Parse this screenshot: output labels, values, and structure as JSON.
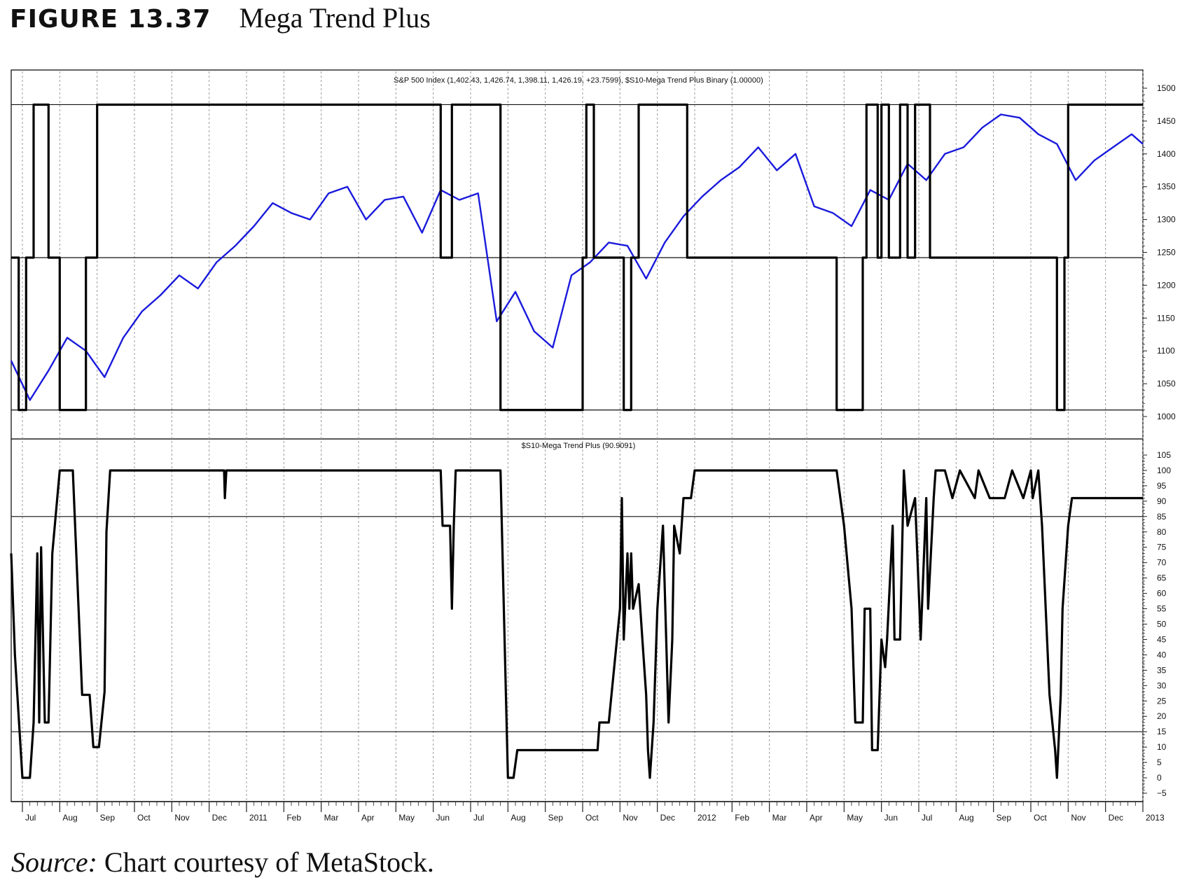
{
  "figure": {
    "number": "FIGURE 13.37",
    "title": "Mega Trend Plus",
    "source_prefix": "Source:",
    "source_text": " Chart courtesy of MetaStock."
  },
  "chart_data": [
    {
      "type": "line",
      "title": "S&P 500 Index (1,402.43, 1,426.74, 1,398.11, 1,426.19, +23.7599), $S10-Mega Trend Plus Binary (1.00000)",
      "ylim": [
        1000,
        1500
      ],
      "yticks": [
        1000,
        1050,
        1100,
        1150,
        1200,
        1250,
        1300,
        1350,
        1400,
        1450,
        1500
      ],
      "hlines": [
        1010,
        1242,
        1475
      ],
      "grid": "vertical dotted at month starts",
      "series": [
        {
          "color": "#1a1adc",
          "x": [
            0.0,
            0.5,
            1.0,
            1.5,
            2.0,
            2.5,
            3.0,
            3.5,
            4.0,
            4.5,
            5.0,
            5.5,
            6.0,
            6.5,
            7.0,
            7.5,
            8.0,
            8.5,
            9.0,
            9.5,
            10.0,
            10.5,
            11.0,
            11.5,
            12.0,
            12.5,
            13.0,
            13.5,
            14.0,
            14.5,
            15.0,
            15.5,
            16.0,
            16.5,
            17.0,
            17.5,
            18.0,
            18.5,
            19.0,
            19.5,
            20.0,
            20.5,
            21.0,
            21.5,
            22.0,
            22.5,
            23.0,
            23.5,
            24.0,
            24.5,
            25.0,
            25.5,
            26.0,
            26.5,
            27.0,
            27.5,
            28.0,
            28.5,
            29.0,
            29.5,
            30.0,
            30.3
          ],
          "y": [
            1085,
            1025,
            1070,
            1120,
            1100,
            1060,
            1120,
            1160,
            1185,
            1215,
            1195,
            1235,
            1260,
            1290,
            1325,
            1310,
            1300,
            1340,
            1350,
            1300,
            1330,
            1335,
            1280,
            1345,
            1330,
            1340,
            1145,
            1190,
            1130,
            1105,
            1215,
            1235,
            1265,
            1260,
            1210,
            1265,
            1305,
            1335,
            1360,
            1380,
            1410,
            1375,
            1400,
            1320,
            1310,
            1290,
            1345,
            1330,
            1385,
            1360,
            1400,
            1410,
            1440,
            1460,
            1455,
            1430,
            1415,
            1360,
            1390,
            1410,
            1430,
            1415
          ]
        },
        {
          "color": "#000000",
          "x": [
            0.0,
            0.2,
            0.2,
            0.4,
            0.4,
            0.6,
            0.6,
            1.0,
            1.0,
            1.3,
            1.3,
            2.0,
            2.0,
            2.3,
            2.3,
            2.6,
            2.6,
            11.5,
            11.5,
            11.8,
            11.8,
            13.1,
            13.1,
            15.3,
            15.3,
            15.4,
            15.4,
            15.6,
            15.6,
            16.4,
            16.4,
            16.6,
            16.6,
            16.8,
            16.8,
            18.1,
            18.1,
            22.1,
            22.1,
            22.8,
            22.8,
            22.9,
            22.9,
            23.2,
            23.2,
            23.3,
            23.3,
            23.5,
            23.5,
            23.8,
            23.8,
            24.0,
            24.0,
            24.2,
            24.2,
            24.5,
            24.5,
            24.6,
            24.6,
            28.0,
            28.0,
            28.2,
            28.2,
            28.3,
            28.3,
            28.5,
            28.5,
            30.3
          ],
          "y": [
            1242,
            1242,
            1010,
            1010,
            1242,
            1242,
            1475,
            1475,
            1242,
            1242,
            1010,
            1010,
            1242,
            1242,
            1475,
            1475,
            1475,
            1475,
            1242,
            1242,
            1475,
            1475,
            1010,
            1010,
            1242,
            1242,
            1475,
            1475,
            1242,
            1242,
            1010,
            1010,
            1242,
            1242,
            1475,
            1475,
            1242,
            1242,
            1010,
            1010,
            1242,
            1242,
            1475,
            1475,
            1242,
            1242,
            1475,
            1475,
            1242,
            1242,
            1475,
            1475,
            1242,
            1242,
            1475,
            1475,
            1475,
            1475,
            1242,
            1242,
            1010,
            1010,
            1242,
            1242,
            1475,
            1475,
            1475,
            1475
          ]
        }
      ]
    },
    {
      "type": "line",
      "title": "$S10-Mega Trend Plus (90.9091)",
      "ylim": [
        -5,
        105
      ],
      "yticks": [
        -5,
        0,
        5,
        10,
        15,
        20,
        25,
        30,
        35,
        40,
        45,
        50,
        55,
        60,
        65,
        70,
        75,
        80,
        85,
        90,
        95,
        100,
        105
      ],
      "hlines": [
        15,
        85
      ],
      "grid": "vertical dotted at month starts",
      "series": [
        {
          "color": "#000000",
          "x": [
            0.0,
            0.1,
            0.3,
            0.5,
            0.6,
            0.7,
            0.75,
            0.8,
            0.9,
            1.0,
            1.1,
            1.3,
            1.55,
            1.65,
            1.9,
            2.1,
            2.2,
            2.35,
            2.5,
            2.55,
            2.65,
            5.7,
            5.72,
            5.76,
            5.8,
            11.5,
            11.55,
            11.75,
            11.8,
            11.85,
            11.9,
            13.1,
            13.3,
            13.45,
            13.55,
            13.7,
            15.7,
            15.75,
            16.0,
            16.3,
            16.35,
            16.4,
            16.5,
            16.55,
            16.6,
            16.65,
            16.8,
            16.9,
            17.0,
            17.05,
            17.1,
            17.2,
            17.3,
            17.45,
            17.6,
            17.7,
            17.75,
            17.9,
            18.0,
            18.2,
            18.3,
            18.4,
            22.1,
            22.3,
            22.5,
            22.6,
            22.8,
            22.85,
            23.0,
            23.05,
            23.2,
            23.3,
            23.4,
            23.45,
            23.6,
            23.65,
            23.8,
            23.9,
            24.0,
            24.2,
            24.35,
            24.5,
            24.55,
            24.7,
            24.75,
            24.9,
            25.0,
            25.2,
            25.4,
            25.8,
            25.9,
            26.2,
            26.4,
            26.6,
            26.8,
            27.1,
            27.3,
            27.35,
            27.5,
            27.6,
            27.8,
            27.95,
            28.0,
            28.1,
            28.15,
            28.3,
            28.4,
            28.5,
            30.3
          ],
          "y": [
            73,
            40,
            0,
            0,
            18,
            73,
            18,
            75,
            18,
            18,
            73,
            100,
            100,
            100,
            27,
            27,
            10,
            10,
            28,
            80,
            100,
            100,
            91,
            100,
            100,
            100,
            82,
            82,
            55,
            82,
            100,
            100,
            0,
            0,
            9,
            9,
            9,
            18,
            18,
            55,
            91,
            45,
            73,
            55,
            73,
            55,
            63,
            45,
            27,
            9,
            0,
            18,
            55,
            82,
            18,
            45,
            82,
            73,
            91,
            91,
            100,
            100,
            100,
            82,
            55,
            18,
            18,
            55,
            55,
            9,
            9,
            45,
            36,
            45,
            82,
            45,
            45,
            100,
            82,
            91,
            45,
            91,
            55,
            91,
            100,
            100,
            100,
            91,
            100,
            91,
            100,
            91,
            91,
            91,
            100,
            91,
            100,
            91,
            100,
            82,
            27,
            9,
            0,
            27,
            55,
            82,
            91,
            91,
            91
          ]
        }
      ]
    }
  ],
  "x_axis": {
    "labels": [
      "Jul",
      "Aug",
      "Sep",
      "Oct",
      "Nov",
      "Dec",
      "2011",
      "Feb",
      "Mar",
      "Apr",
      "May",
      "Jun",
      "Jul",
      "Aug",
      "Sep",
      "Oct",
      "Nov",
      "Dec",
      "2012",
      "Feb",
      "Mar",
      "Apr",
      "May",
      "Jun",
      "Jul",
      "Aug",
      "Sep",
      "Oct",
      "Nov",
      "Dec",
      "2013"
    ]
  },
  "colors": {
    "price_line": "#1a1adc",
    "binary_line": "#000000",
    "grid": "#9a9a9a"
  }
}
